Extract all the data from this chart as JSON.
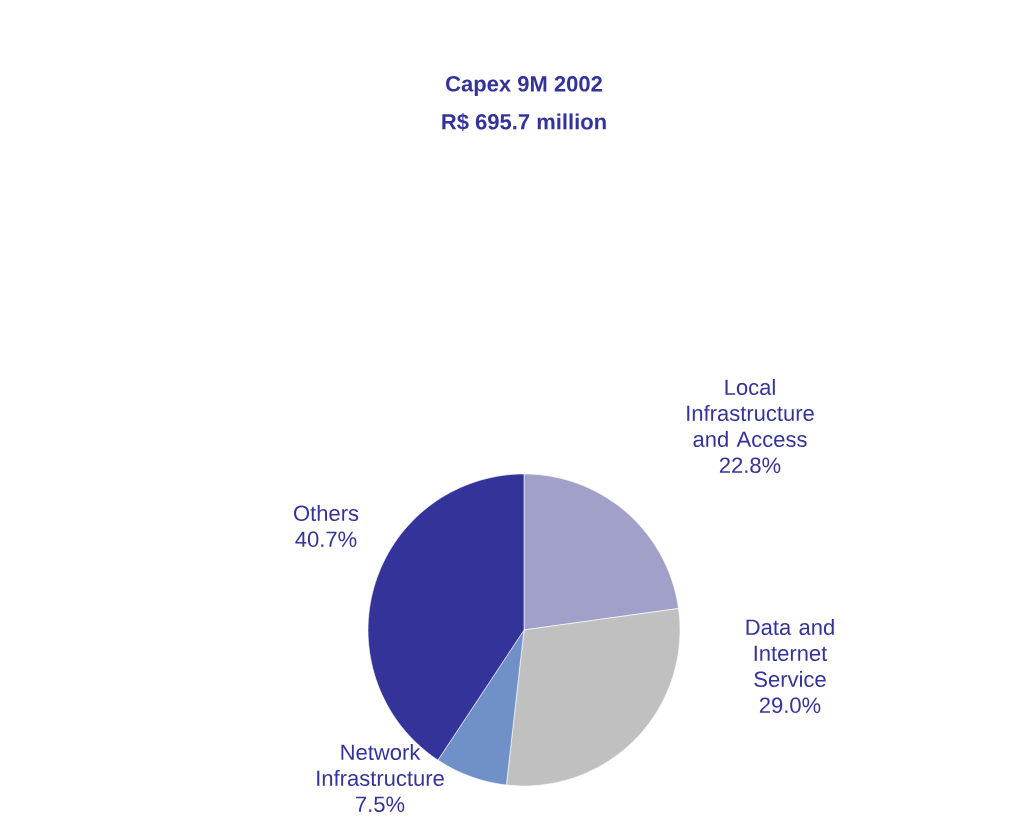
{
  "chart_data": {
    "type": "pie",
    "title": "Capex 9M 2002",
    "subtitle": "R$ 695.7 million",
    "categories": [
      "Local Infrastructure and Access",
      "Data and Internet Service",
      "Network Infrastructure",
      "Others"
    ],
    "values": [
      22.8,
      29.0,
      7.5,
      40.7
    ],
    "value_labels": [
      "22.8%",
      "29.0%",
      "7.5%",
      "40.7%"
    ],
    "colors": [
      "#a0a0c8",
      "#c0c0c0",
      "#7090c8",
      "#333399"
    ]
  }
}
